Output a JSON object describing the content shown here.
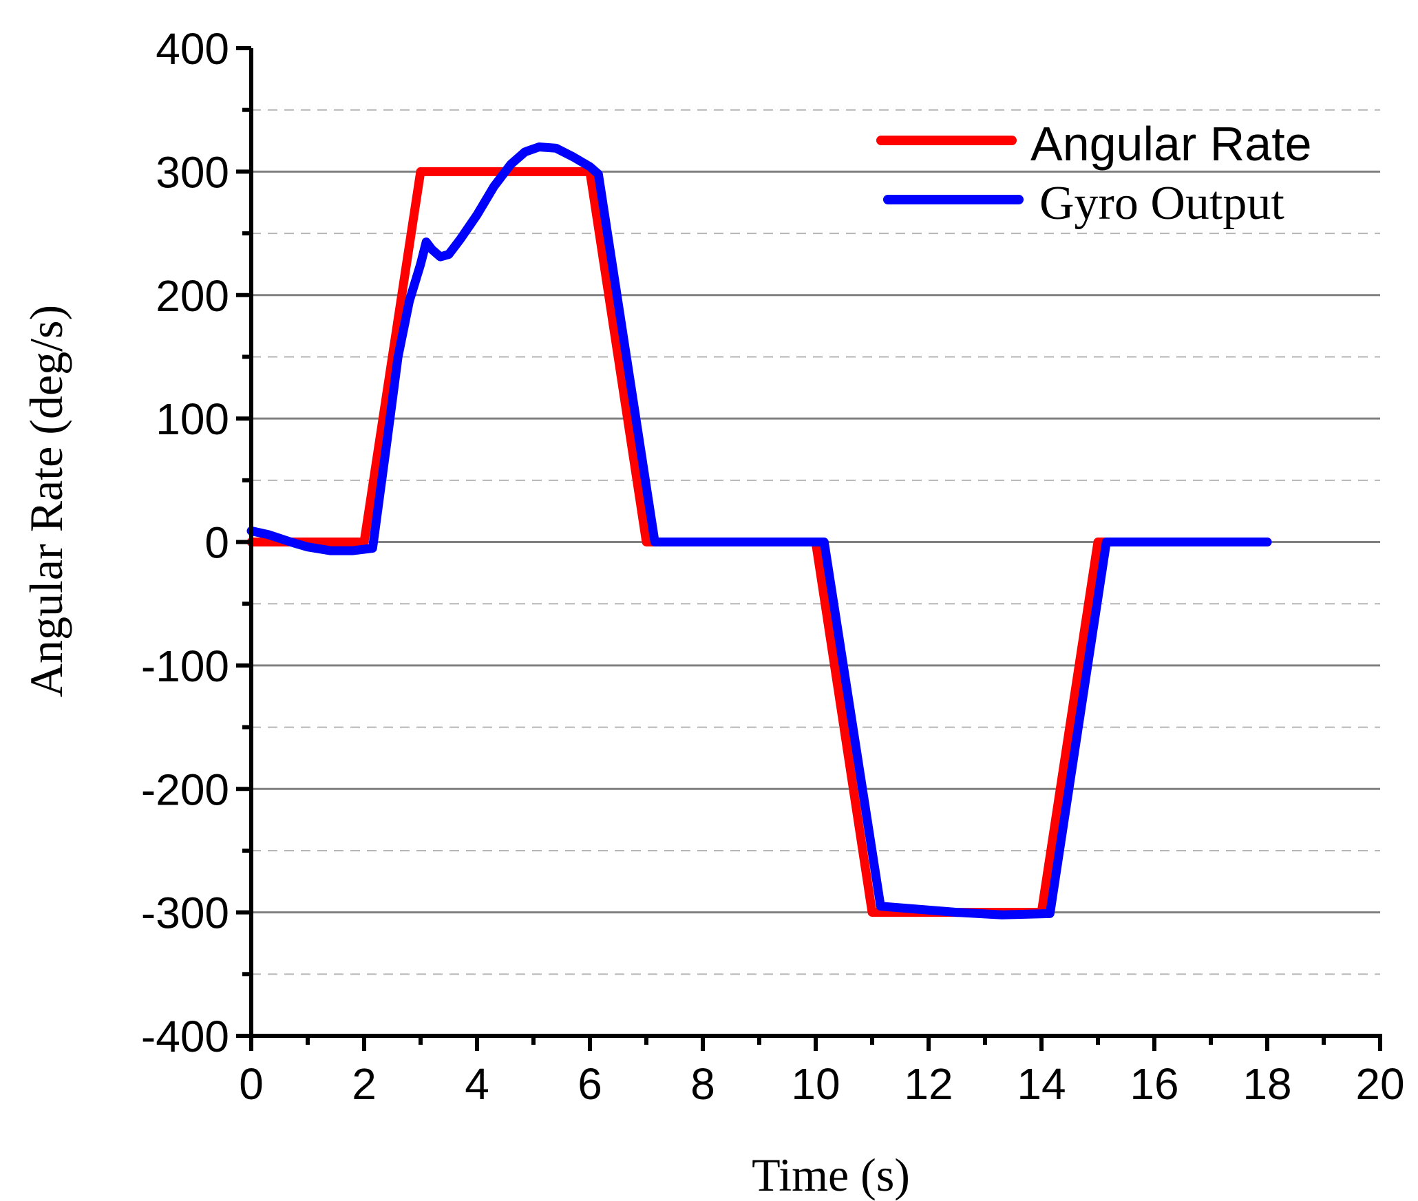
{
  "chart_data": {
    "type": "line",
    "title": "",
    "xlabel": "Time (s)",
    "ylabel": "Angular Rate (deg/s)",
    "xlim": [
      0,
      20
    ],
    "ylim": [
      -400,
      400
    ],
    "x_ticks": [
      "0",
      "2",
      "4",
      "6",
      "8",
      "10",
      "12",
      "14",
      "16",
      "18",
      "20"
    ],
    "y_ticks": [
      "400",
      "300",
      "200",
      "100",
      "0",
      "-100",
      "-200",
      "-300",
      "-400"
    ],
    "grid": {
      "major": true,
      "minor_dashed": true
    },
    "legend_position": "top-right",
    "series": [
      {
        "name": "Angular Rate",
        "color": "#ff0000",
        "points": [
          [
            0,
            0
          ],
          [
            2,
            0
          ],
          [
            3,
            300
          ],
          [
            6,
            300
          ],
          [
            7,
            0
          ],
          [
            10,
            0
          ],
          [
            11,
            -300
          ],
          [
            14,
            -300
          ],
          [
            15,
            0
          ],
          [
            18,
            0
          ]
        ]
      },
      {
        "name": "Gyro Output",
        "color": "#0000ff",
        "points": [
          [
            0,
            9
          ],
          [
            0.3,
            6
          ],
          [
            0.7,
            0
          ],
          [
            1.0,
            -4
          ],
          [
            1.4,
            -7
          ],
          [
            1.8,
            -7
          ],
          [
            2.15,
            -5
          ],
          [
            2.4,
            80
          ],
          [
            2.6,
            150
          ],
          [
            2.8,
            195
          ],
          [
            3.0,
            225
          ],
          [
            3.1,
            243
          ],
          [
            3.2,
            237
          ],
          [
            3.35,
            231
          ],
          [
            3.5,
            233
          ],
          [
            3.7,
            245
          ],
          [
            4.0,
            265
          ],
          [
            4.3,
            288
          ],
          [
            4.6,
            306
          ],
          [
            4.85,
            316
          ],
          [
            5.1,
            320
          ],
          [
            5.4,
            319
          ],
          [
            5.7,
            312
          ],
          [
            6.0,
            304
          ],
          [
            6.15,
            298
          ],
          [
            7.15,
            0
          ],
          [
            10.15,
            0
          ],
          [
            11.15,
            -295
          ],
          [
            12.5,
            -300
          ],
          [
            13.3,
            -302
          ],
          [
            14.15,
            -301
          ],
          [
            15.15,
            0
          ],
          [
            18,
            0
          ]
        ]
      }
    ]
  }
}
